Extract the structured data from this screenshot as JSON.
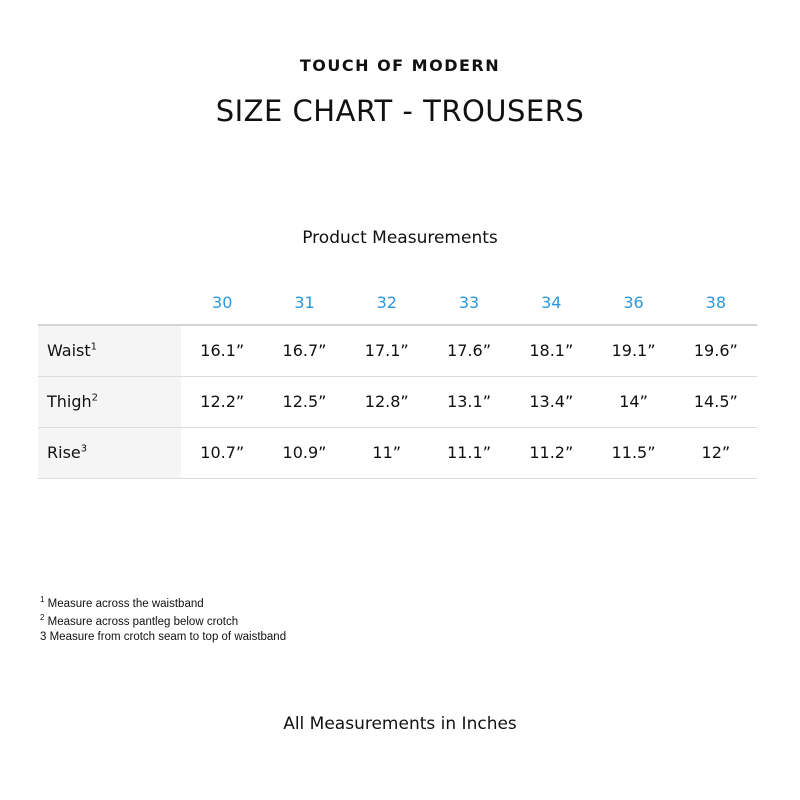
{
  "brand": "TOUCH OF MODERN",
  "title": "SIZE CHART - TROUSERS",
  "subtitle": "Product Measurements",
  "accent_color": "#2b98dd",
  "table": {
    "sizes": [
      "30",
      "31",
      "32",
      "33",
      "34",
      "36",
      "38"
    ],
    "rows": [
      {
        "label": "Waist",
        "note": "1",
        "values": [
          "16.1”",
          "16.7”",
          "17.1”",
          "17.6”",
          "18.1”",
          "19.1”",
          "19.6”"
        ]
      },
      {
        "label": "Thigh",
        "note": "2",
        "values": [
          "12.2”",
          "12.5”",
          "12.8”",
          "13.1”",
          "13.4”",
          "14”",
          "14.5”"
        ]
      },
      {
        "label": "Rise",
        "note": "3",
        "values": [
          "10.7”",
          "10.9”",
          "11”",
          "11.1”",
          "11.2”",
          "11.5”",
          "12”"
        ]
      }
    ]
  },
  "footnotes": [
    {
      "mark": "1",
      "text": "Measure across the waistband"
    },
    {
      "mark": "2",
      "text": "Measure across pantleg below crotch"
    },
    {
      "mark": "3",
      "text": " Measure from crotch seam to top of waistband"
    }
  ],
  "footer": "All Measurements in Inches"
}
